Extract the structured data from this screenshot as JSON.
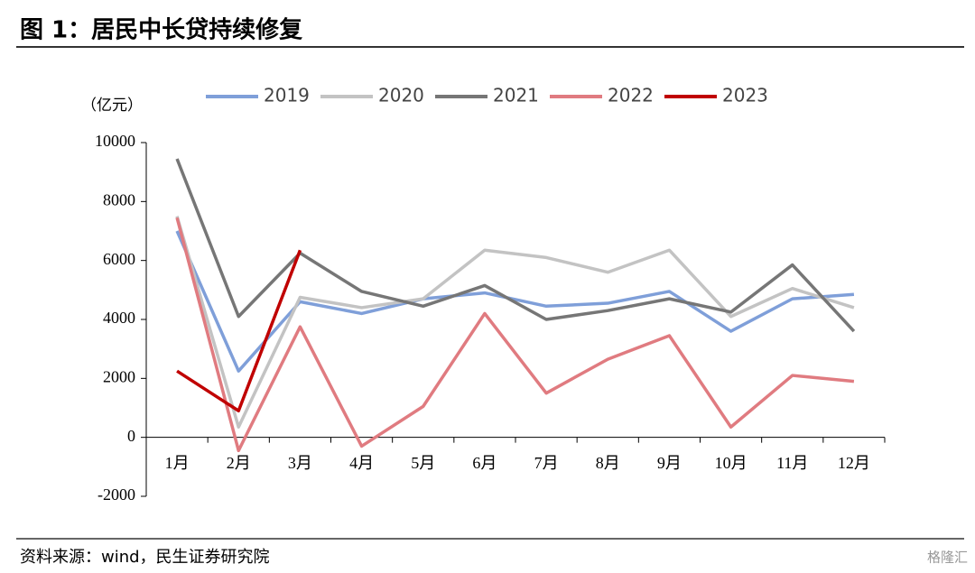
{
  "title": "图 1：居民中长贷持续修复",
  "source": "资料来源：wind，民生证券研究院",
  "watermark": "格隆汇",
  "chart_data": {
    "type": "line",
    "y_label": "（亿元）",
    "categories": [
      "1月",
      "2月",
      "3月",
      "4月",
      "5月",
      "6月",
      "7月",
      "8月",
      "9月",
      "10月",
      "11月",
      "12月"
    ],
    "series": [
      {
        "name": "2019",
        "color": "#7f9fd9",
        "values": [
          7000,
          2250,
          4600,
          4200,
          4700,
          4900,
          4450,
          4550,
          4950,
          3600,
          4700,
          4850
        ]
      },
      {
        "name": "2020",
        "color": "#c3c3c3",
        "values": [
          7500,
          350,
          4750,
          4400,
          4700,
          6350,
          6100,
          5600,
          6350,
          4100,
          5050,
          4400
        ]
      },
      {
        "name": "2021",
        "color": "#767676",
        "values": [
          9450,
          4100,
          6250,
          4950,
          4450,
          5150,
          4000,
          4300,
          4700,
          4250,
          5850,
          3600
        ]
      },
      {
        "name": "2022",
        "color": "#e07b80",
        "values": [
          7450,
          -450,
          3750,
          -300,
          1050,
          4200,
          1500,
          2650,
          3450,
          350,
          2100,
          1900
        ]
      },
      {
        "name": "2023",
        "color": "#c00000",
        "values": [
          2250,
          900,
          6350,
          null,
          null,
          null,
          null,
          null,
          null,
          null,
          null,
          null
        ]
      }
    ],
    "ylim": [
      -2000,
      10000
    ],
    "yticks": [
      -2000,
      0,
      2000,
      4000,
      6000,
      8000,
      10000
    ],
    "grid": false,
    "legend": "top"
  }
}
